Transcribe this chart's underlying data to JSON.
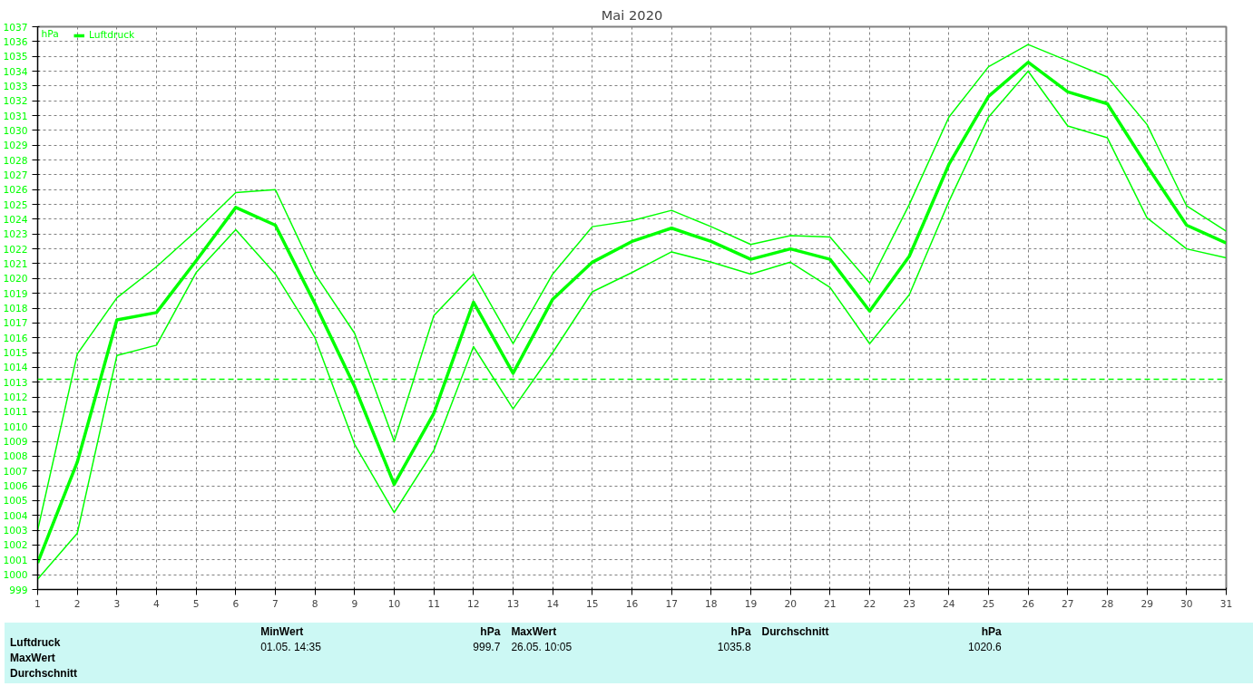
{
  "chart_data": {
    "type": "line",
    "title": "Mai 2020",
    "ylabel": "hPa",
    "x": [
      1,
      2,
      3,
      4,
      5,
      6,
      7,
      8,
      9,
      10,
      11,
      12,
      13,
      14,
      15,
      16,
      17,
      18,
      19,
      20,
      21,
      22,
      23,
      24,
      25,
      26,
      27,
      28,
      29,
      30,
      31
    ],
    "series": [
      {
        "color": "#00ff00",
        "values": [
          1003.0,
          1014.9,
          1018.7,
          1020.8,
          1023.2,
          1025.8,
          1026.0,
          1020.3,
          1016.3,
          1009.0,
          1017.5,
          1020.3,
          1015.6,
          1020.3,
          1023.5,
          1023.9,
          1024.6,
          1023.5,
          1022.3,
          1022.9,
          1022.8,
          1019.7,
          1025.0,
          1030.9,
          1034.3,
          1035.8,
          1034.7,
          1033.6,
          1030.4,
          1024.9,
          1023.2
        ]
      },
      {
        "name": "Luftdruck",
        "color": "#00ff00",
        "values": [
          1000.8,
          1007.6,
          1017.2,
          1017.7,
          1021.2,
          1024.8,
          1023.6,
          1018.3,
          1012.7,
          1006.1,
          1010.9,
          1018.4,
          1013.6,
          1018.6,
          1021.1,
          1022.5,
          1023.4,
          1022.5,
          1021.3,
          1022.0,
          1021.3,
          1017.8,
          1021.5,
          1027.7,
          1032.3,
          1034.6,
          1032.6,
          1031.8,
          1027.6,
          1023.6,
          1022.4
        ]
      },
      {
        "color": "#00ff00",
        "values": [
          999.7,
          1002.8,
          1014.8,
          1015.5,
          1020.4,
          1023.3,
          1020.3,
          1016.0,
          1008.8,
          1004.2,
          1008.4,
          1015.4,
          1011.2,
          1015.0,
          1019.1,
          1020.4,
          1021.8,
          1021.1,
          1020.3,
          1021.1,
          1019.4,
          1015.6,
          1018.9,
          1025.2,
          1030.9,
          1034.0,
          1030.3,
          1029.5,
          1024.1,
          1022.0,
          1021.4
        ]
      }
    ],
    "xlim": [
      1,
      31
    ],
    "xticks": [
      1,
      2,
      3,
      4,
      5,
      6,
      7,
      8,
      9,
      10,
      11,
      12,
      13,
      14,
      15,
      16,
      17,
      18,
      19,
      20,
      21,
      22,
      23,
      24,
      25,
      26,
      27,
      28,
      29,
      30,
      31
    ],
    "ylim": [
      999,
      1037
    ],
    "yticks": [
      999,
      1000,
      1001,
      1002,
      1003,
      1004,
      1005,
      1006,
      1007,
      1008,
      1009,
      1010,
      1011,
      1012,
      1013,
      1014,
      1015,
      1016,
      1017,
      1018,
      1019,
      1020,
      1021,
      1022,
      1023,
      1024,
      1025,
      1026,
      1027,
      1028,
      1029,
      1030,
      1031,
      1032,
      1033,
      1034,
      1035,
      1036,
      1037
    ],
    "ref_lines": [
      {
        "axis": "y",
        "value": 1013.2,
        "color": "#00ff00",
        "line_style": "dashed"
      }
    ],
    "grid": true,
    "legend": "top left",
    "marker": "none",
    "line_style": "solid",
    "annotations": [
      "Luftdruck",
      "MaxWert",
      "Durchschnitt",
      "MinWert",
      "hPa",
      "01.05.  14:35",
      "999.7",
      "MaxWert",
      "hPa",
      "26.05.  10:05",
      "1035.8",
      "Durchschnitt",
      "hPa",
      "1020.6"
    ]
  }
}
